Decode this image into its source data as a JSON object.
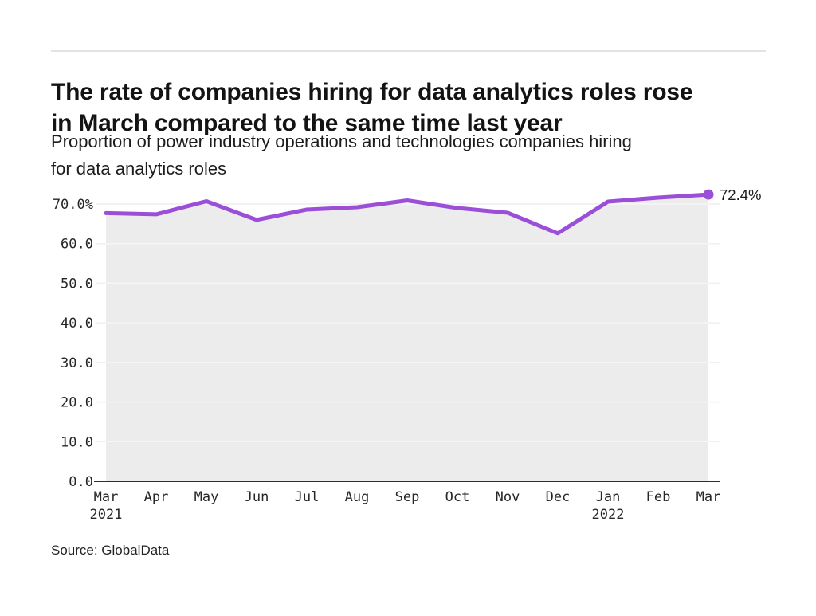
{
  "page": {
    "title_line1": "The rate of companies hiring for data analytics roles rose",
    "title_line2": "in March compared to the same time last year",
    "subtitle_line1": "Proportion of power industry operations and technologies companies hiring",
    "subtitle_line2": "for data analytics roles",
    "source": "Source: GlobalData"
  },
  "chart_data": {
    "type": "area",
    "title": "The rate of companies hiring for data analytics roles rose in March compared to the same time last year",
    "subtitle": "Proportion of power industry operations and technologies companies hiring for data analytics roles",
    "source": "Source: GlobalData",
    "categories": [
      "Mar 2021",
      "Apr",
      "May",
      "Jun",
      "Jul",
      "Aug",
      "Sep",
      "Oct",
      "Nov",
      "Dec",
      "Jan 2022",
      "Feb",
      "Mar"
    ],
    "x_tick_labels": [
      {
        "month": "Mar",
        "year": "2021"
      },
      {
        "month": "Apr",
        "year": ""
      },
      {
        "month": "May",
        "year": ""
      },
      {
        "month": "Jun",
        "year": ""
      },
      {
        "month": "Jul",
        "year": ""
      },
      {
        "month": "Aug",
        "year": ""
      },
      {
        "month": "Sep",
        "year": ""
      },
      {
        "month": "Oct",
        "year": ""
      },
      {
        "month": "Nov",
        "year": ""
      },
      {
        "month": "Dec",
        "year": ""
      },
      {
        "month": "Jan",
        "year": "2022"
      },
      {
        "month": "Feb",
        "year": ""
      },
      {
        "month": "Mar",
        "year": ""
      }
    ],
    "values": [
      67.7,
      67.4,
      70.7,
      66.0,
      68.6,
      69.2,
      70.9,
      69.0,
      67.8,
      62.6,
      70.6,
      71.6,
      72.4
    ],
    "unit": "%",
    "ylabel": "",
    "xlabel": "",
    "ylim": [
      0,
      75
    ],
    "yticks": [
      {
        "value": 0,
        "label": "0.0"
      },
      {
        "value": 10,
        "label": "10.0"
      },
      {
        "value": 20,
        "label": "20.0"
      },
      {
        "value": 30,
        "label": "30.0"
      },
      {
        "value": 40,
        "label": "40.0"
      },
      {
        "value": 50,
        "label": "50.0"
      },
      {
        "value": 60,
        "label": "60.0"
      },
      {
        "value": 70,
        "label": "70.0%"
      }
    ],
    "grid": true,
    "legend": false,
    "end_label": "72.4%",
    "colors": {
      "line": "#9b4fd9",
      "area_fill": "#ececec",
      "gridline": "#e2e2e2",
      "axis": "#2e2e2e",
      "tick_text": "#262626",
      "end_label_text": "#1a1a1a"
    }
  }
}
